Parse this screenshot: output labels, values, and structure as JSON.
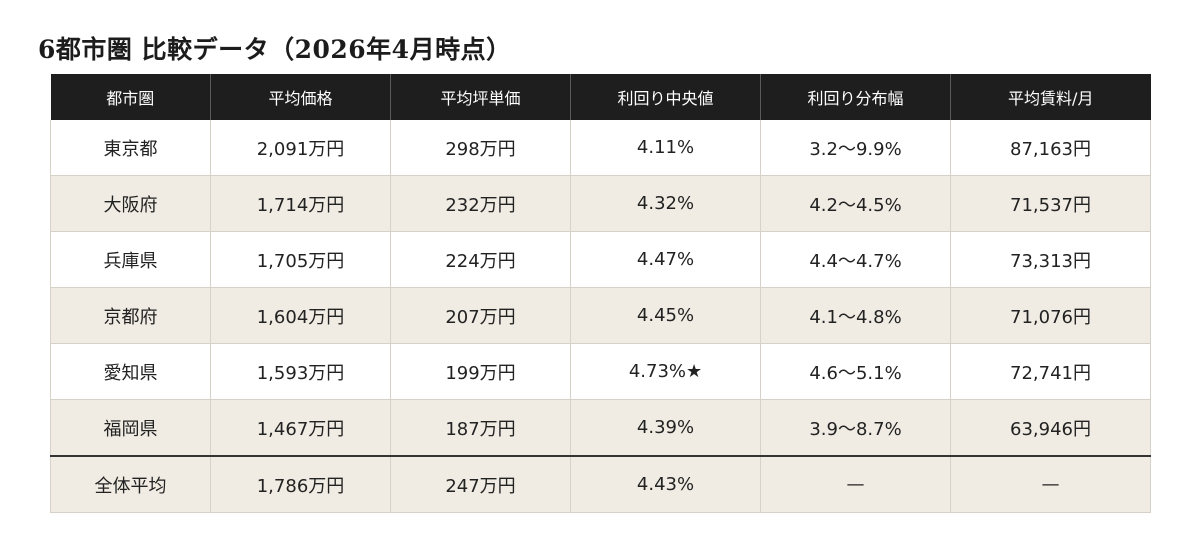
{
  "title": "6都市圏 比較データ（2026年4月時点）",
  "table": {
    "headers": [
      "都市圏",
      "平均価格",
      "平均坪単価",
      "利回り中央値",
      "利回り分布幅",
      "平均賃料/月"
    ],
    "rows": [
      {
        "city": "東京都",
        "price": "2,091万円",
        "tsubo": "298万円",
        "yield": "4.11%",
        "range": "3.2〜9.9%",
        "rent": "87,163円"
      },
      {
        "city": "大阪府",
        "price": "1,714万円",
        "tsubo": "232万円",
        "yield": "4.32%",
        "range": "4.2〜4.5%",
        "rent": "71,537円"
      },
      {
        "city": "兵庫県",
        "price": "1,705万円",
        "tsubo": "224万円",
        "yield": "4.47%",
        "range": "4.4〜4.7%",
        "rent": "73,313円"
      },
      {
        "city": "京都府",
        "price": "1,604万円",
        "tsubo": "207万円",
        "yield": "4.45%",
        "range": "4.1〜4.8%",
        "rent": "71,076円"
      },
      {
        "city": "愛知県",
        "price": "1,593万円",
        "tsubo": "199万円",
        "yield": "4.73%★",
        "range": "4.6〜5.1%",
        "rent": "72,741円"
      },
      {
        "city": "福岡県",
        "price": "1,467万円",
        "tsubo": "187万円",
        "yield": "4.39%",
        "range": "3.9〜8.7%",
        "rent": "63,946円"
      }
    ],
    "total": {
      "city": "全体平均",
      "price": "1,786万円",
      "tsubo": "247万円",
      "yield": "4.43%",
      "range": "—",
      "rent": "—"
    }
  },
  "colors": {
    "header_bg": "#1e1e1e",
    "stripe_bg": "#f0ece3",
    "highlight": "#2e6b2b",
    "muted": "#9a9a9a"
  }
}
